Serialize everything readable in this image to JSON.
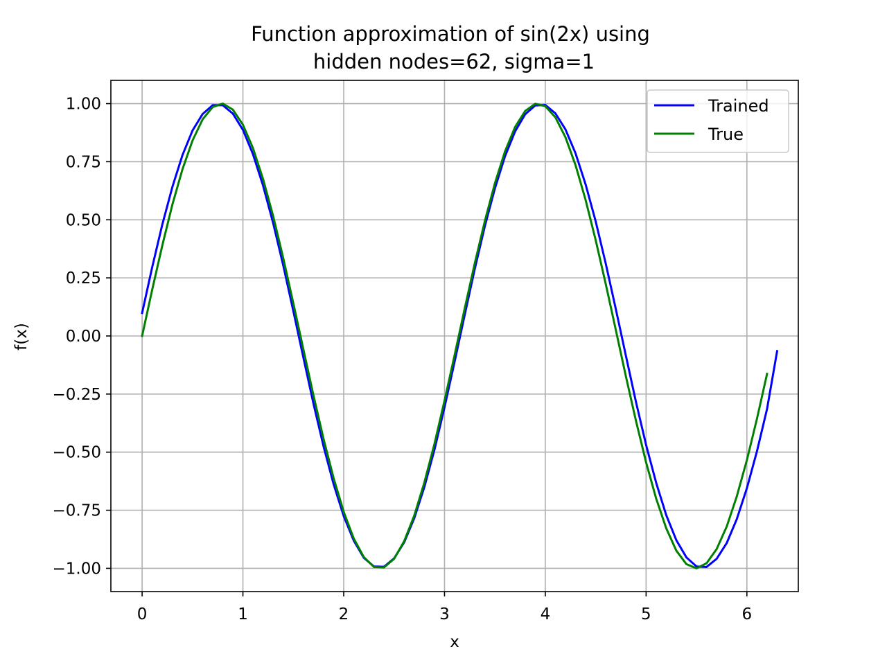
{
  "chart_data": {
    "type": "line",
    "title": [
      "Function approximation of sin(2x) using",
      "hidden nodes=62, sigma=1"
    ],
    "xlabel": "x",
    "ylabel": "f(x)",
    "xlim": [
      -0.31,
      6.51
    ],
    "ylim": [
      -1.1,
      1.1
    ],
    "xticks": [
      0,
      1,
      2,
      3,
      4,
      5,
      6
    ],
    "xtick_labels": [
      "0",
      "1",
      "2",
      "3",
      "4",
      "5",
      "6"
    ],
    "yticks": [
      1.0,
      0.75,
      0.5,
      0.25,
      0.0,
      -0.25,
      -0.5,
      -0.75,
      -1.0
    ],
    "ytick_labels": [
      "1.00",
      "0.75",
      "0.50",
      "0.25",
      "0.00",
      "−0.25",
      "−0.50",
      "−0.75",
      "−1.00"
    ],
    "grid": true,
    "legend_position": "top-right",
    "x_start": 0,
    "x_step": 0.1,
    "series": [
      {
        "name": "Trained",
        "color": "#0000ff",
        "values": [
          0.099,
          0.296,
          0.479,
          0.641,
          0.778,
          0.884,
          0.955,
          0.993,
          0.993,
          0.957,
          0.887,
          0.782,
          0.647,
          0.486,
          0.304,
          0.108,
          -0.093,
          -0.291,
          -0.475,
          -0.638,
          -0.775,
          -0.881,
          -0.955,
          -0.992,
          -0.993,
          -0.957,
          -0.888,
          -0.784,
          -0.65,
          -0.49,
          -0.307,
          -0.111,
          0.09,
          0.288,
          0.472,
          0.635,
          0.773,
          0.88,
          0.954,
          0.992,
          0.994,
          0.958,
          0.889,
          0.786,
          0.652,
          0.493,
          0.311,
          0.115,
          -0.086,
          -0.285,
          -0.469,
          -0.632,
          -0.771,
          -0.879,
          -0.953,
          -0.992,
          -0.994,
          -0.959,
          -0.891,
          -0.788,
          -0.655,
          -0.496,
          -0.314,
          -0.065
        ]
      },
      {
        "name": "True",
        "color": "#008000",
        "values": [
          0.0,
          0.199,
          0.389,
          0.565,
          0.717,
          0.841,
          0.932,
          0.985,
          1.0,
          0.974,
          0.909,
          0.808,
          0.675,
          0.516,
          0.335,
          0.141,
          -0.058,
          -0.256,
          -0.443,
          -0.612,
          -0.757,
          -0.872,
          -0.952,
          -0.994,
          -0.996,
          -0.959,
          -0.883,
          -0.773,
          -0.631,
          -0.465,
          -0.279,
          -0.083,
          0.117,
          0.312,
          0.494,
          0.657,
          0.794,
          0.899,
          0.968,
          0.999,
          0.989,
          0.941,
          0.855,
          0.735,
          0.585,
          0.412,
          0.223,
          0.025,
          -0.175,
          -0.366,
          -0.544,
          -0.7,
          -0.828,
          -0.924,
          -0.982,
          -1.0,
          -0.978,
          -0.917,
          -0.82,
          -0.69,
          -0.534,
          -0.356,
          -0.163
        ]
      }
    ]
  }
}
